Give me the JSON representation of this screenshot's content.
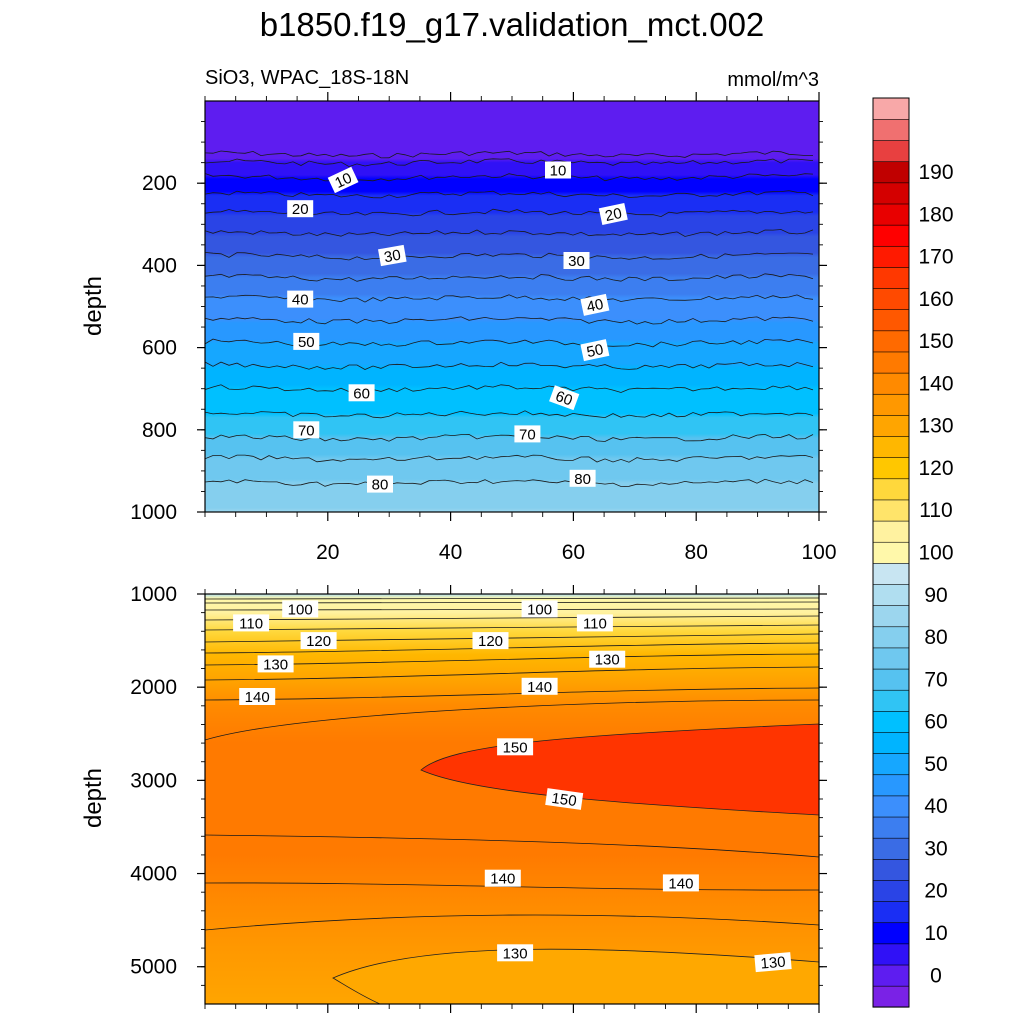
{
  "figure": {
    "title": "b1850.f19_g17.validation_mct.002",
    "subtitle_left": "SiO3, WPAC_18S-18N",
    "subtitle_right": "mmol/m^3"
  },
  "chart_data": [
    {
      "type": "heatmap",
      "panel": "upper",
      "variable": "SiO3",
      "region": "WPAC_18S-18N",
      "units": "mmol/m^3",
      "ylabel": "depth",
      "xlim": [
        0,
        100
      ],
      "ylim": [
        1000,
        0
      ],
      "x_ticks": [
        "20",
        "40",
        "60",
        "80",
        "100"
      ],
      "y_ticks": [
        "200",
        "400",
        "600",
        "800",
        "1000"
      ],
      "contour_interval": 5,
      "profile": {
        "depth": [
          0,
          130,
          150,
          200,
          300,
          400,
          500,
          600,
          700,
          800,
          900,
          1000
        ],
        "value": [
          0,
          0,
          5,
          12,
          23,
          32,
          42,
          51,
          60,
          68,
          78,
          85
        ]
      },
      "contour_labels": [
        {
          "value": "10",
          "x": 22.5,
          "y": 192,
          "angle": -25
        },
        {
          "value": "10",
          "x": 57.5,
          "y": 168,
          "angle": 0
        },
        {
          "value": "20",
          "x": 15.5,
          "y": 262,
          "angle": 0
        },
        {
          "value": "20",
          "x": 66.5,
          "y": 275,
          "angle": -12
        },
        {
          "value": "30",
          "x": 30.5,
          "y": 376,
          "angle": -10
        },
        {
          "value": "30",
          "x": 60.5,
          "y": 388,
          "angle": 0
        },
        {
          "value": "40",
          "x": 15.5,
          "y": 482,
          "angle": 0
        },
        {
          "value": "40",
          "x": 63.5,
          "y": 496,
          "angle": -12
        },
        {
          "value": "50",
          "x": 16.5,
          "y": 585,
          "angle": 0
        },
        {
          "value": "50",
          "x": 63.5,
          "y": 606,
          "angle": -12
        },
        {
          "value": "60",
          "x": 25.5,
          "y": 710,
          "angle": 0
        },
        {
          "value": "60",
          "x": 58.5,
          "y": 722,
          "angle": 20
        },
        {
          "value": "70",
          "x": 16.5,
          "y": 800,
          "angle": 0
        },
        {
          "value": "70",
          "x": 52.5,
          "y": 810,
          "angle": 0
        },
        {
          "value": "80",
          "x": 28.5,
          "y": 932,
          "angle": 0
        },
        {
          "value": "80",
          "x": 61.5,
          "y": 918,
          "angle": 0
        }
      ]
    },
    {
      "type": "heatmap",
      "panel": "lower",
      "variable": "SiO3",
      "region": "WPAC_18S-18N",
      "units": "mmol/m^3",
      "ylabel": "depth",
      "xlim": [
        0,
        100
      ],
      "ylim": [
        5400,
        1000
      ],
      "y_ticks": [
        "1000",
        "2000",
        "3000",
        "4000",
        "5000"
      ],
      "contour_interval": 5,
      "contour_labels": [
        {
          "value": "100",
          "x": 15.5,
          "y": 1160,
          "angle": 0
        },
        {
          "value": "100",
          "x": 54.5,
          "y": 1160,
          "angle": 0
        },
        {
          "value": "110",
          "x": 7.5,
          "y": 1310,
          "angle": 0
        },
        {
          "value": "110",
          "x": 63.5,
          "y": 1310,
          "angle": 0
        },
        {
          "value": "120",
          "x": 18.5,
          "y": 1500,
          "angle": 0
        },
        {
          "value": "120",
          "x": 46.5,
          "y": 1500,
          "angle": 0
        },
        {
          "value": "130",
          "x": 11.5,
          "y": 1750,
          "angle": 0
        },
        {
          "value": "130",
          "x": 65.5,
          "y": 1700,
          "angle": 0
        },
        {
          "value": "140",
          "x": 8.5,
          "y": 2100,
          "angle": 0
        },
        {
          "value": "140",
          "x": 54.5,
          "y": 1990,
          "angle": 0
        },
        {
          "value": "150",
          "x": 50.5,
          "y": 2640,
          "angle": 0
        },
        {
          "value": "150",
          "x": 58.5,
          "y": 3200,
          "angle": 8
        },
        {
          "value": "140",
          "x": 48.5,
          "y": 4050,
          "angle": 0
        },
        {
          "value": "140",
          "x": 77.5,
          "y": 4100,
          "angle": 0
        },
        {
          "value": "130",
          "x": 50.5,
          "y": 4850,
          "angle": 0
        },
        {
          "value": "130",
          "x": 92.5,
          "y": 4950,
          "angle": -5
        }
      ]
    }
  ],
  "colorbar": {
    "levels": [
      "0",
      "10",
      "20",
      "30",
      "40",
      "50",
      "60",
      "70",
      "80",
      "90",
      "100",
      "110",
      "120",
      "130",
      "140",
      "150",
      "160",
      "170",
      "180",
      "190"
    ],
    "colors": [
      "#7a22e6",
      "#5e1df0",
      "#3011f6",
      "#0000ff",
      "#1a2ef4",
      "#2a44e6",
      "#3456e0",
      "#3a6ce5",
      "#3c7ef0",
      "#3c8ffc",
      "#2898ff",
      "#16a7ff",
      "#00b4ff",
      "#00c0ff",
      "#30c4f4",
      "#56c2f0",
      "#6fc8ef",
      "#85cfee",
      "#9cd6ee",
      "#b0def0",
      "#c8e5f2",
      "#fff8aa",
      "#fff2a0",
      "#ffe46a",
      "#ffd83c",
      "#ffc700",
      "#ffb700",
      "#ffa500",
      "#ff9800",
      "#ff8a00",
      "#ff7a00",
      "#ff6a00",
      "#ff5800",
      "#ff4a00",
      "#ff3800",
      "#ff1a00",
      "#ff0000",
      "#e80000",
      "#d40000",
      "#c00000",
      "#e84040",
      "#f07070",
      "#f8a8a8"
    ]
  }
}
